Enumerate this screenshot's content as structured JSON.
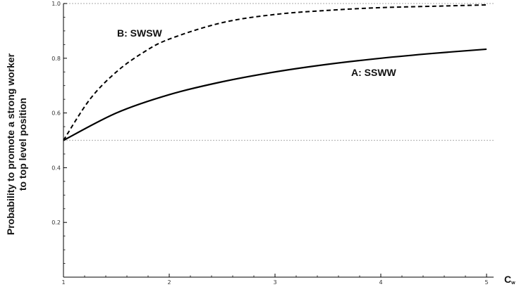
{
  "chart_data": {
    "type": "line",
    "title": "",
    "xlabel": "C",
    "xlabel_subscript": "w",
    "ylabel_line1": "Probability to promote a strong worker",
    "ylabel_line2": "to top level position",
    "xlim": [
      1,
      5
    ],
    "ylim": [
      0,
      1
    ],
    "x_ticks": [
      "1",
      "2",
      "3",
      "4",
      "5"
    ],
    "y_ticks": [
      "0.2",
      "0.4",
      "0.6",
      "0.8",
      "1.0"
    ],
    "reference_lines": [
      0.5,
      1.0
    ],
    "colors": {
      "curve": "#000000",
      "reference": "#bbbbbb",
      "axis": "#000000"
    },
    "series": [
      {
        "name": "A: SSWW",
        "style": "solid",
        "x": [
          1,
          1.5,
          2,
          2.5,
          3,
          3.5,
          4,
          4.5,
          5
        ],
        "y": [
          0.5,
          0.6,
          0.667,
          0.714,
          0.75,
          0.778,
          0.8,
          0.818,
          0.833
        ]
      },
      {
        "name": "B: SWSW",
        "style": "dashed",
        "x": [
          1,
          1.25,
          1.5,
          1.75,
          2,
          2.5,
          3,
          3.5,
          4,
          4.5,
          5
        ],
        "y": [
          0.5,
          0.65,
          0.75,
          0.82,
          0.87,
          0.93,
          0.96,
          0.975,
          0.985,
          0.99,
          0.995
        ]
      }
    ]
  }
}
